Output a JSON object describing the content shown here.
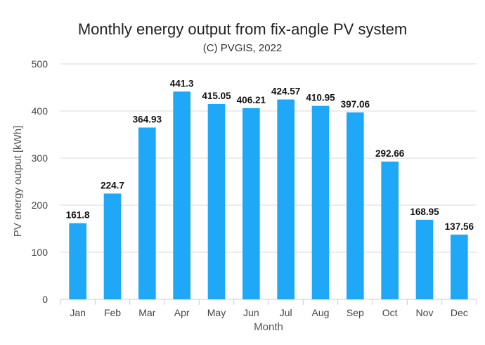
{
  "chart_data": {
    "type": "bar",
    "title": "Monthly energy output from fix-angle PV system",
    "subtitle": "(C) PVGIS, 2022",
    "xlabel": "Month",
    "ylabel": "PV energy output [kWh]",
    "ylim": [
      0,
      500
    ],
    "yticks": [
      0,
      100,
      200,
      300,
      400,
      500
    ],
    "grid": true,
    "categories": [
      "Jan",
      "Feb",
      "Mar",
      "Apr",
      "May",
      "Jun",
      "Jul",
      "Aug",
      "Sep",
      "Oct",
      "Nov",
      "Dec"
    ],
    "values": [
      161.8,
      224.7,
      364.93,
      441.3,
      415.05,
      406.21,
      424.57,
      410.95,
      397.06,
      292.66,
      168.95,
      137.56
    ],
    "data_labels": [
      "161.8",
      "224.7",
      "364.93",
      "441.3",
      "415.05",
      "406.21",
      "424.57",
      "410.95",
      "397.06",
      "292.66",
      "168.95",
      "137.56"
    ],
    "bar_color": "#1fa8f7"
  }
}
